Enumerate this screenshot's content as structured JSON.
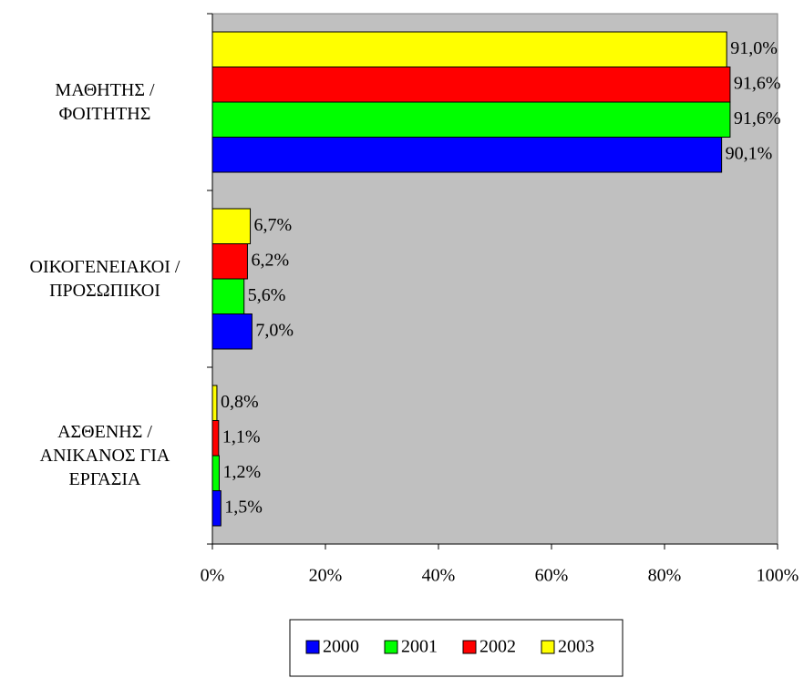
{
  "chart_data": {
    "type": "bar",
    "orientation": "horizontal",
    "categories": [
      "ΜΑΘΗΤΗΣ /\nΦΟΙΤΗΤΗΣ",
      "ΟΙΚΟΓΕΝΕΙΑΚΟΙ /\nΠΡΟΣΩΠΙΚΟΙ",
      "ΑΣΘΕΝΗΣ /\nΑΝΙΚΑΝΟΣ ΓΙΑ\nΕΡΓΑΣΙΑ"
    ],
    "series": [
      {
        "name": "2000",
        "color": "#0000ff",
        "values": [
          90.1,
          7.0,
          1.5
        ],
        "value_labels": [
          "90,1%",
          "7,0%",
          "1,5%"
        ]
      },
      {
        "name": "2001",
        "color": "#00ff00",
        "values": [
          91.6,
          5.6,
          1.2
        ],
        "value_labels": [
          "91,6%",
          "5,6%",
          "1,2%"
        ]
      },
      {
        "name": "2002",
        "color": "#ff0000",
        "values": [
          91.6,
          6.2,
          1.1
        ],
        "value_labels": [
          "91,6%",
          "6,2%",
          "1,1%"
        ]
      },
      {
        "name": "2003",
        "color": "#ffff00",
        "values": [
          91.0,
          6.7,
          0.8
        ],
        "value_labels": [
          "91,0%",
          "6,7%",
          "0,8%"
        ]
      }
    ],
    "xlim": [
      0,
      100
    ],
    "xticks": [
      {
        "value": 0,
        "label": "0%"
      },
      {
        "value": 20,
        "label": "20%"
      },
      {
        "value": 40,
        "label": "40%"
      },
      {
        "value": 60,
        "label": "60%"
      },
      {
        "value": 80,
        "label": "80%"
      },
      {
        "value": 100,
        "label": "100%"
      }
    ],
    "legend": "bottom"
  }
}
